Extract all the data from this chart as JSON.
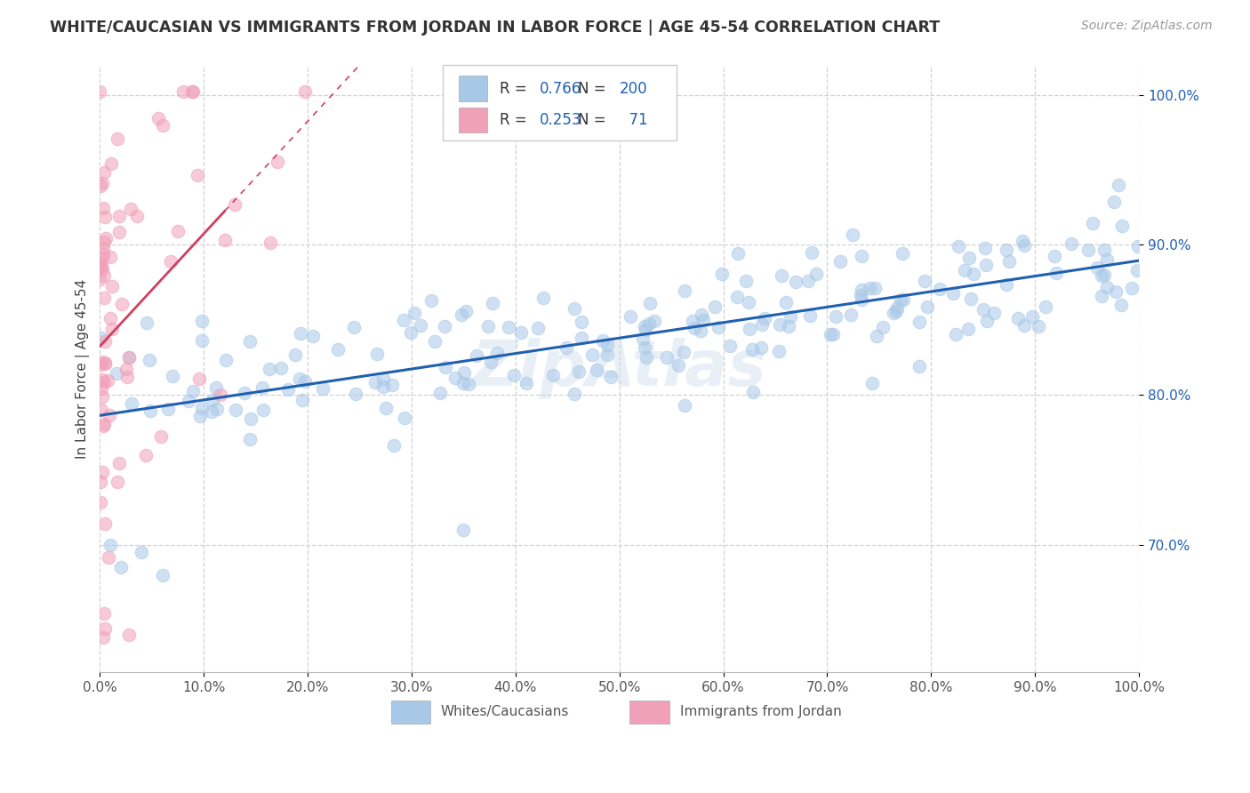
{
  "title": "WHITE/CAUCASIAN VS IMMIGRANTS FROM JORDAN IN LABOR FORCE | AGE 45-54 CORRELATION CHART",
  "source": "Source: ZipAtlas.com",
  "ylabel": "In Labor Force | Age 45-54",
  "blue_R": 0.766,
  "blue_N": 200,
  "pink_R": 0.253,
  "pink_N": 71,
  "blue_color": "#A8C8E8",
  "pink_color": "#F0A0B8",
  "blue_line_color": "#2060B0",
  "pink_line_color": "#D04060",
  "watermark": "ZipAtlas",
  "xlim": [
    0.0,
    1.0
  ],
  "ylim": [
    0.615,
    1.02
  ],
  "x_ticks": [
    0.0,
    0.1,
    0.2,
    0.3,
    0.4,
    0.5,
    0.6,
    0.7,
    0.8,
    0.9,
    1.0
  ],
  "y_ticks": [
    0.7,
    0.8,
    0.9,
    1.0
  ],
  "y_tick_labels": [
    "70.0%",
    "80.0%",
    "90.0%",
    "100.0%"
  ],
  "x_tick_labels": [
    "0.0%",
    "10.0%",
    "20.0%",
    "30.0%",
    "40.0%",
    "50.0%",
    "60.0%",
    "70.0%",
    "80.0%",
    "90.0%",
    "100.0%"
  ],
  "legend_label_blue": "Whites/Caucasians",
  "legend_label_pink": "Immigrants from Jordan"
}
